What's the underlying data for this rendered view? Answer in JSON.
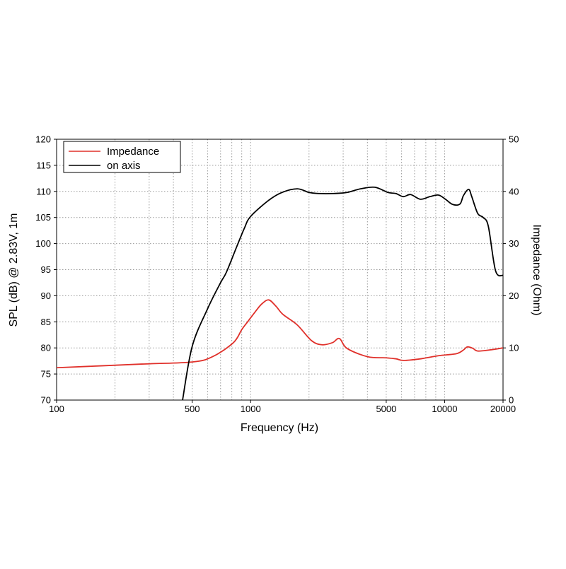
{
  "chart_data": {
    "type": "line",
    "title": "",
    "xlabel": "Frequency (Hz)",
    "ylabel": "SPL (dB) @ 2.83V, 1m",
    "y2label": "Impedance (Ohm)",
    "xscale": "log",
    "xlim": [
      100,
      20000
    ],
    "ylim": [
      70,
      120
    ],
    "y2lim": [
      0,
      50
    ],
    "grid": true,
    "legend_position": "top-left",
    "xticks": [
      100,
      500,
      1000,
      5000,
      10000,
      20000
    ],
    "xtick_labels": [
      "100",
      "500",
      "1000",
      "5000",
      "10000",
      "20000"
    ],
    "yticks": [
      70,
      75,
      80,
      85,
      90,
      95,
      100,
      105,
      110,
      115,
      120
    ],
    "ytick_labels": [
      "70",
      "75",
      "80",
      "85",
      "90",
      "95",
      "100",
      "105",
      "110",
      "115",
      "120"
    ],
    "y2ticks": [
      0,
      10,
      20,
      30,
      40,
      50
    ],
    "y2tick_labels": [
      "0",
      "10",
      "20",
      "30",
      "40",
      "50"
    ],
    "series": [
      {
        "name": "Impedance",
        "axis": "right",
        "color": "#e0302a",
        "points": [
          [
            100,
            6.2
          ],
          [
            275,
            6.9
          ],
          [
            500,
            7.3
          ],
          [
            635,
            8.3
          ],
          [
            815,
            11
          ],
          [
            900,
            13.5
          ],
          [
            965,
            15
          ],
          [
            1050,
            16.8
          ],
          [
            1140,
            18.4
          ],
          [
            1240,
            19.2
          ],
          [
            1350,
            18
          ],
          [
            1470,
            16.4
          ],
          [
            1740,
            14.4
          ],
          [
            2060,
            11.4
          ],
          [
            2330,
            10.6
          ],
          [
            2640,
            11
          ],
          [
            2870,
            11.8
          ],
          [
            3140,
            9.9
          ],
          [
            4020,
            8.3
          ],
          [
            5000,
            8.1
          ],
          [
            5630,
            7.9
          ],
          [
            6120,
            7.6
          ],
          [
            7500,
            7.9
          ],
          [
            9300,
            8.5
          ],
          [
            11500,
            8.9
          ],
          [
            12500,
            9.6
          ],
          [
            13100,
            10.2
          ],
          [
            14000,
            9.9
          ],
          [
            14800,
            9.4
          ],
          [
            17000,
            9.6
          ],
          [
            20000,
            10
          ]
        ]
      },
      {
        "name": "on axis",
        "axis": "left",
        "color": "#000000",
        "points": [
          [
            446,
            70
          ],
          [
            500,
            80.3
          ],
          [
            600,
            87.5
          ],
          [
            700,
            92.5
          ],
          [
            750,
            94.5
          ],
          [
            850,
            99.5
          ],
          [
            930,
            103
          ],
          [
            1000,
            105.2
          ],
          [
            1240,
            108.3
          ],
          [
            1450,
            109.8
          ],
          [
            1740,
            110.5
          ],
          [
            2000,
            109.8
          ],
          [
            2230,
            109.6
          ],
          [
            2700,
            109.6
          ],
          [
            3140,
            109.8
          ],
          [
            3690,
            110.5
          ],
          [
            4370,
            110.8
          ],
          [
            5100,
            109.8
          ],
          [
            5600,
            109.6
          ],
          [
            6120,
            109
          ],
          [
            6680,
            109.4
          ],
          [
            7500,
            108.5
          ],
          [
            8400,
            109
          ],
          [
            9300,
            109.3
          ],
          [
            10100,
            108.5
          ],
          [
            11000,
            107.5
          ],
          [
            12000,
            107.6
          ],
          [
            12500,
            109.2
          ],
          [
            13300,
            110.4
          ],
          [
            13800,
            109
          ],
          [
            14800,
            105.8
          ],
          [
            15800,
            105
          ],
          [
            16800,
            103.3
          ],
          [
            18300,
            94.8
          ],
          [
            20000,
            93.9
          ]
        ]
      }
    ]
  }
}
